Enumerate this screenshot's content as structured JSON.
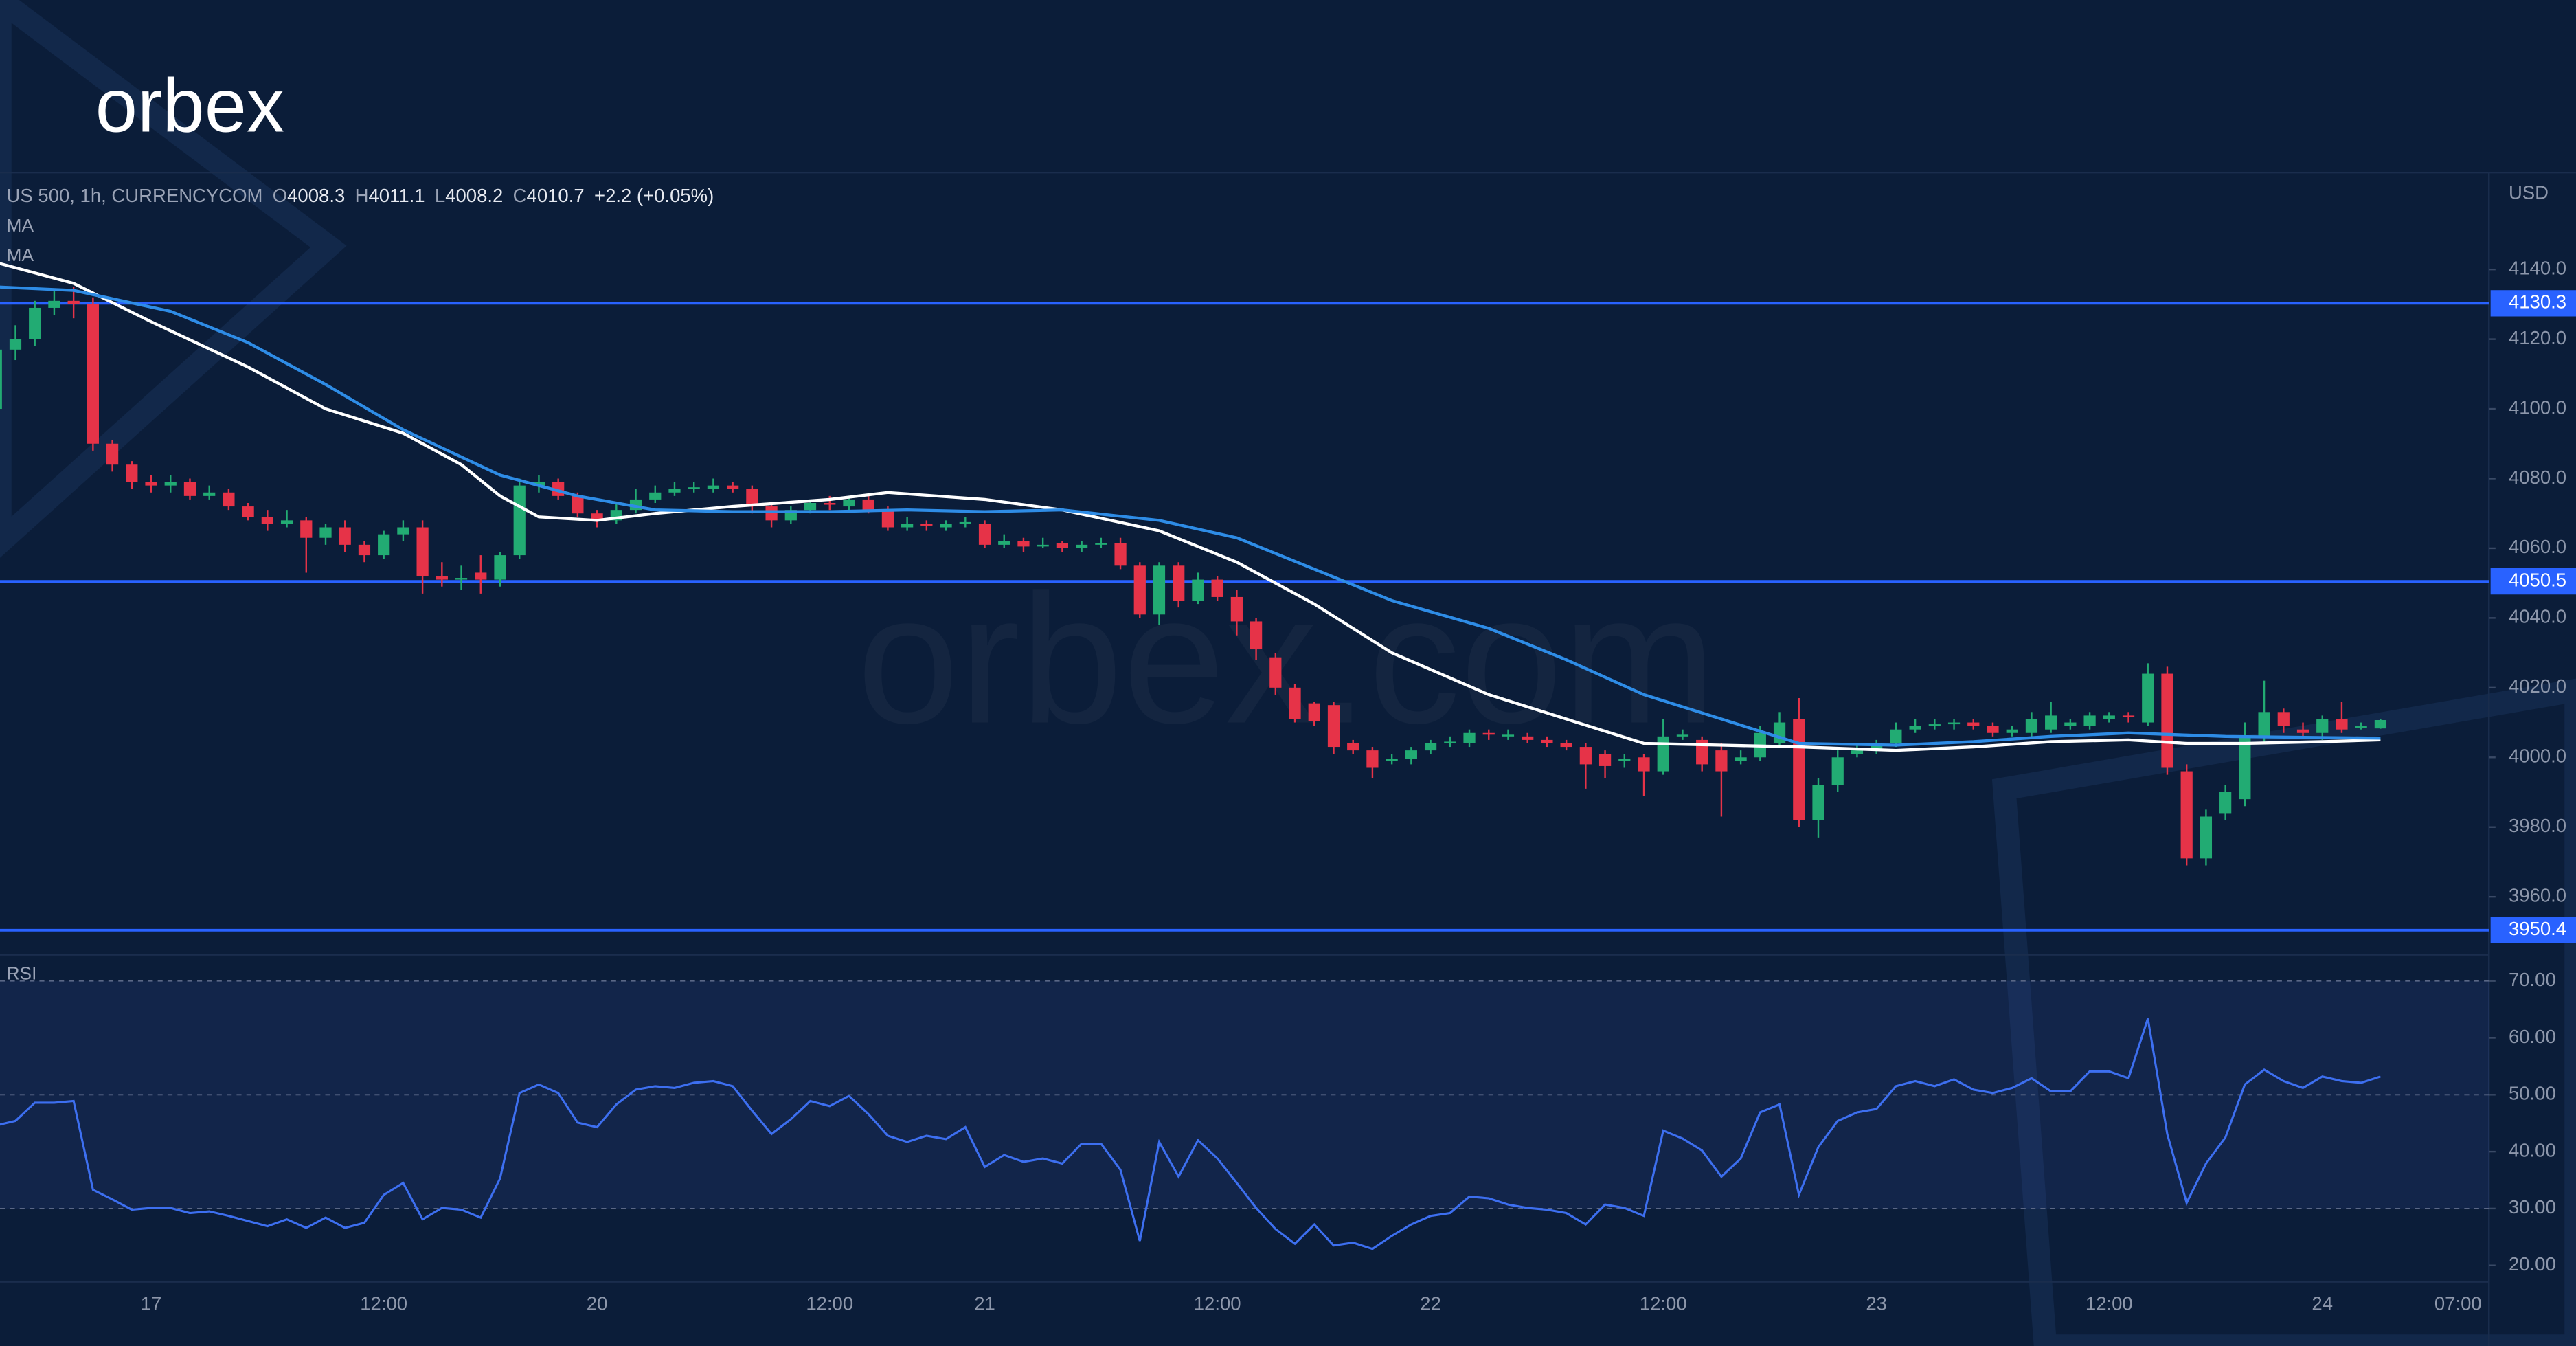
{
  "logo": "orbex",
  "watermark": "orbex.com",
  "chart_data": [
    {
      "type": "candlestick",
      "symbol": "US 500, 1h, CURRENCYCOM",
      "ohlc_labels": [
        "O",
        "H",
        "L",
        "C"
      ],
      "change": "+2.2 (+0.05%)",
      "currency": "USD",
      "categories": [
        null,
        null,
        null,
        null,
        null,
        null,
        null,
        null,
        "17",
        null,
        null,
        null,
        null,
        null,
        null,
        null,
        null,
        null,
        null,
        null,
        "12:00",
        null,
        null,
        null,
        null,
        null,
        null,
        null,
        null,
        null,
        null,
        "20",
        null,
        null,
        null,
        null,
        null,
        null,
        null,
        null,
        null,
        null,
        null,
        "12:00",
        null,
        null,
        null,
        null,
        null,
        null,
        null,
        "21",
        null,
        null,
        null,
        null,
        null,
        null,
        null,
        null,
        null,
        null,
        null,
        "12:00",
        null,
        null,
        null,
        null,
        null,
        null,
        null,
        null,
        null,
        null,
        "22",
        null,
        null,
        null,
        null,
        null,
        null,
        null,
        null,
        null,
        null,
        null,
        "12:00",
        null,
        null,
        null,
        null,
        null,
        null,
        null,
        null,
        null,
        null,
        "23",
        null,
        null,
        null,
        null,
        null,
        null,
        null,
        null,
        null,
        null,
        null,
        "12:00",
        null,
        null,
        null,
        null,
        null,
        null,
        null,
        null,
        null,
        null,
        "24",
        null,
        null,
        null,
        null,
        null,
        null,
        "07:00"
      ],
      "open": [
        4100,
        4117,
        4120,
        4129,
        4131,
        4130,
        4090,
        4084,
        4079,
        4078,
        4079,
        4075,
        4076,
        4072,
        4069,
        4067,
        4068,
        4063,
        4066,
        4061,
        4058,
        4064,
        4066,
        4052,
        4051,
        4053,
        4051,
        4058,
        4078,
        4079,
        4075,
        4070,
        4068,
        4071,
        4074,
        4076,
        4077,
        4077,
        4078,
        4077,
        4072,
        4068,
        4071,
        4073,
        4072,
        4074,
        4071,
        4066,
        4067,
        4066,
        4067,
        4067,
        4061,
        4062,
        4060.5,
        4061.5,
        4060,
        4061,
        4061.5,
        4055,
        4041,
        4055,
        4045,
        4051,
        4046,
        4039,
        4028.7,
        4020,
        4015.5,
        4015,
        4004,
        4002,
        3999,
        3999.5,
        4002,
        4004,
        4004,
        4007,
        4006,
        4006,
        4005,
        4004,
        4003,
        4001,
        3999,
        4000,
        3996,
        4006,
        4005,
        4002,
        3999,
        4000,
        4004,
        4011,
        3982,
        3992,
        4001,
        4002,
        4004,
        4008,
        4009,
        4009.5,
        4010,
        4009,
        4007,
        4007,
        4008,
        4009,
        4009,
        4011,
        4012,
        4010,
        4024,
        3996,
        3971,
        3984,
        3988,
        4006,
        4013,
        4008,
        4007,
        4011,
        4008.5,
        4008.3,
        null,
        null,
        null,
        null
      ],
      "high": [
        4120,
        4124,
        4131,
        4134,
        4135,
        4132,
        4091,
        4085,
        4081,
        4081,
        4080,
        4078,
        4077,
        4073,
        4071,
        4071,
        4069,
        4067,
        4068,
        4062,
        4065,
        4068,
        4068,
        4056,
        4055,
        4058,
        4059,
        4080,
        4081,
        4080,
        4076,
        4071,
        4073,
        4077,
        4078,
        4079,
        4079,
        4080,
        4079,
        4078,
        4073,
        4072,
        4074,
        4075,
        4075,
        4075,
        4072,
        4069,
        4068,
        4068,
        4069,
        4068,
        4064,
        4063,
        4063,
        4062,
        4062,
        4063,
        4063,
        4056,
        4056,
        4056,
        4053,
        4052,
        4048,
        4040,
        4030,
        4021,
        4016,
        4016,
        4005,
        4003,
        4001,
        4003,
        4005,
        4006,
        4008,
        4008,
        4008,
        4007,
        4006,
        4005,
        4004,
        4002,
        4001,
        4001,
        4011,
        4008,
        4006,
        4004,
        4002,
        4009,
        4013,
        4017,
        3994,
        4002,
        4004,
        4005,
        4010,
        4011,
        4011,
        4011,
        4011,
        4010,
        4009,
        4013,
        4016,
        4011,
        4013,
        4013,
        4013,
        4027,
        4026,
        3998,
        3985,
        3992,
        4010,
        4022,
        4014,
        4010,
        4012,
        4016,
        4010,
        4011.1,
        null,
        null,
        null,
        null
      ],
      "low": [
        4092,
        4114,
        4118,
        4127,
        4126,
        4088,
        4082,
        4077,
        4076,
        4076,
        4074,
        4074,
        4071,
        4068,
        4065,
        4066,
        4053,
        4061,
        4059,
        4056,
        4057,
        4062,
        4047,
        4049,
        4048,
        4047,
        4049,
        4057,
        4076,
        4074,
        4069,
        4066,
        4067,
        4070,
        4073,
        4075,
        4076,
        4076,
        4076,
        4070,
        4066,
        4067,
        4070,
        4071,
        4071,
        4070,
        4065,
        4065,
        4065,
        4065,
        4066,
        4060,
        4060,
        4059,
        4060,
        4059,
        4059,
        4060,
        4054,
        4040,
        4038,
        4043,
        4044,
        4045,
        4035,
        4028,
        4018,
        4010,
        4009,
        4001,
        4001,
        3994,
        3998,
        3998,
        4001,
        4003,
        4003,
        4005,
        4005,
        4004,
        4003,
        4002,
        3991,
        3994,
        3997,
        3989,
        3995,
        4005,
        3996,
        3983,
        3998,
        3999,
        4003,
        3980,
        3977,
        3990,
        4000,
        4001,
        4003,
        4007,
        4008,
        4008,
        4008,
        4006,
        4006,
        4006,
        4007,
        4008,
        4008,
        4010,
        4010,
        4009,
        3995,
        3969,
        3969,
        3982,
        3986,
        4004,
        4007,
        4006,
        4005,
        4007,
        4008,
        4008.2,
        null,
        null,
        null,
        null
      ],
      "close": [
        4117,
        4120,
        4129,
        4131,
        4130,
        4090,
        4084,
        4079,
        4078,
        4079,
        4075,
        4076,
        4072,
        4069,
        4067,
        4068,
        4063,
        4066,
        4061,
        4058,
        4064,
        4066,
        4052,
        4051,
        4051.5,
        4051,
        4058,
        4078,
        4079,
        4075,
        4070,
        4068,
        4071,
        4074,
        4076,
        4077,
        4077.5,
        4078,
        4077,
        4072,
        4068,
        4071,
        4073,
        4072.5,
        4074,
        4071,
        4066,
        4067,
        4066.5,
        4067,
        4067.5,
        4061,
        4062,
        4060.5,
        4061,
        4060,
        4061,
        4061.5,
        4055,
        4041,
        4055,
        4045,
        4051,
        4046,
        4039,
        4031,
        4020,
        4011,
        4010.5,
        4003,
        4002,
        3997,
        3999.5,
        4002,
        4004,
        4004.5,
        4007,
        4006.5,
        4006.5,
        4005,
        4004,
        4003,
        3998,
        3997.5,
        3999.5,
        3996,
        4006,
        4006.5,
        3998,
        3996,
        4000,
        4007,
        4010,
        3982,
        3992,
        4000,
        4002,
        4004,
        4008,
        4009,
        4009.5,
        4010,
        4009,
        4007,
        4008,
        4011,
        4012,
        4010,
        4012,
        4012,
        4011.5,
        4024,
        3997,
        3971,
        3983,
        3990,
        4006,
        4013,
        4009,
        4007,
        4011,
        4008,
        4009,
        4010.7,
        null,
        null,
        null,
        null
      ],
      "up_color": "#22ab73",
      "down_color": "#e63348",
      "series": [
        {
          "name": "MA",
          "color": "#ffffff",
          "x": [
            0,
            4,
            8,
            13,
            17,
            21,
            24,
            26,
            28,
            31,
            34,
            38,
            43,
            46,
            51,
            55,
            60,
            64,
            68,
            72,
            77,
            81,
            85,
            89,
            93,
            98,
            102,
            106,
            110,
            113,
            116,
            120,
            123
          ],
          "values": [
            4142,
            4136,
            4125,
            4112,
            4100,
            4093,
            4084,
            4075,
            4069,
            4068,
            4070,
            4072,
            4074,
            4076,
            4074,
            4071,
            4065,
            4056,
            4044,
            4030,
            4018,
            4011,
            4004,
            4003.5,
            4003,
            4002,
            4003,
            4004.5,
            4005,
            4004,
            4004,
            4004.5,
            4005
          ]
        },
        {
          "name": "MA",
          "color": "#2e8ce6",
          "x": [
            0,
            4,
            9,
            13,
            17,
            21,
            26,
            30,
            34,
            38,
            43,
            47,
            51,
            55,
            60,
            64,
            68,
            72,
            77,
            81,
            85,
            89,
            93,
            98,
            102,
            106,
            110,
            115,
            123
          ],
          "values": [
            4135,
            4134,
            4128,
            4119,
            4107,
            4094,
            4081,
            4075,
            4071,
            4070.5,
            4070.5,
            4071,
            4070.5,
            4071,
            4068,
            4063,
            4054,
            4045,
            4037,
            4028,
            4018,
            4011,
            4004,
            4003.5,
            4004.5,
            4006,
            4007,
            4006,
            4005.5
          ]
        }
      ],
      "levels": [
        4130.3,
        4050.5,
        3950.4
      ],
      "level_color": "#2962ff",
      "ylim": [
        3943.8,
        4167.8
      ],
      "yticks": [
        {
          "value": 3960,
          "label": "3960.0"
        },
        {
          "value": 3980,
          "label": "3980.0"
        },
        {
          "value": 4000,
          "label": "4000.0"
        },
        {
          "value": 4020,
          "label": "4020.0"
        },
        {
          "value": 4040,
          "label": "4040.0"
        },
        {
          "value": 4060,
          "label": "4060.0"
        },
        {
          "value": 4080,
          "label": "4080.0"
        },
        {
          "value": 4100,
          "label": "4100.0"
        },
        {
          "value": 4120,
          "label": "4120.0"
        },
        {
          "value": 4140,
          "label": "4140.0"
        }
      ]
    },
    {
      "type": "line",
      "title": "RSI",
      "color": "#3d6ff0",
      "band": [
        30,
        70
      ],
      "guides": [
        70,
        50,
        30
      ],
      "values": [
        44.6,
        45.4,
        48.6,
        48.6,
        48.9,
        33.3,
        31.6,
        29.8,
        30.1,
        30.1,
        29.2,
        29.5,
        28.7,
        27.8,
        26.9,
        28.1,
        26.6,
        28.4,
        26.6,
        27.5,
        32.4,
        34.5,
        28.1,
        30.1,
        29.8,
        28.4,
        35.3,
        50.3,
        51.8,
        50.3,
        45.1,
        44.3,
        48.3,
        50.9,
        51.5,
        51.2,
        52.1,
        52.4,
        51.5,
        47.2,
        43.1,
        45.7,
        48.9,
        48.0,
        49.8,
        46.6,
        42.8,
        41.7,
        42.8,
        42.2,
        44.3,
        37.3,
        39.4,
        38.2,
        38.8,
        37.9,
        41.4,
        41.4,
        36.8,
        24.3,
        41.7,
        35.6,
        42.0,
        38.8,
        34.5,
        30.1,
        26.4,
        23.8,
        27.2,
        23.5,
        24.0,
        22.9,
        25.2,
        27.2,
        28.7,
        29.2,
        32.1,
        31.8,
        30.7,
        30.1,
        29.8,
        29.2,
        27.2,
        30.7,
        30.1,
        28.7,
        43.7,
        42.3,
        40.2,
        35.6,
        38.8,
        46.9,
        48.3,
        32.4,
        40.8,
        45.4,
        46.9,
        47.5,
        51.5,
        52.4,
        51.5,
        52.7,
        50.9,
        50.3,
        51.2,
        52.9,
        50.6,
        50.6,
        54.1,
        54.1,
        52.9,
        63.4,
        43.1,
        31.0,
        37.9,
        42.5,
        51.8,
        54.4,
        52.4,
        51.2,
        53.2,
        52.4,
        52.1,
        53.2,
        null,
        null,
        null,
        null
      ],
      "ylim": [
        17.1,
        74.3
      ],
      "yticks": [
        {
          "value": 20,
          "label": "20.00"
        },
        {
          "value": 30,
          "label": "30.00"
        },
        {
          "value": 40,
          "label": "40.00"
        },
        {
          "value": 50,
          "label": "50.00"
        },
        {
          "value": 60,
          "label": "60.00"
        },
        {
          "value": 70,
          "label": "70.00"
        }
      ]
    }
  ]
}
